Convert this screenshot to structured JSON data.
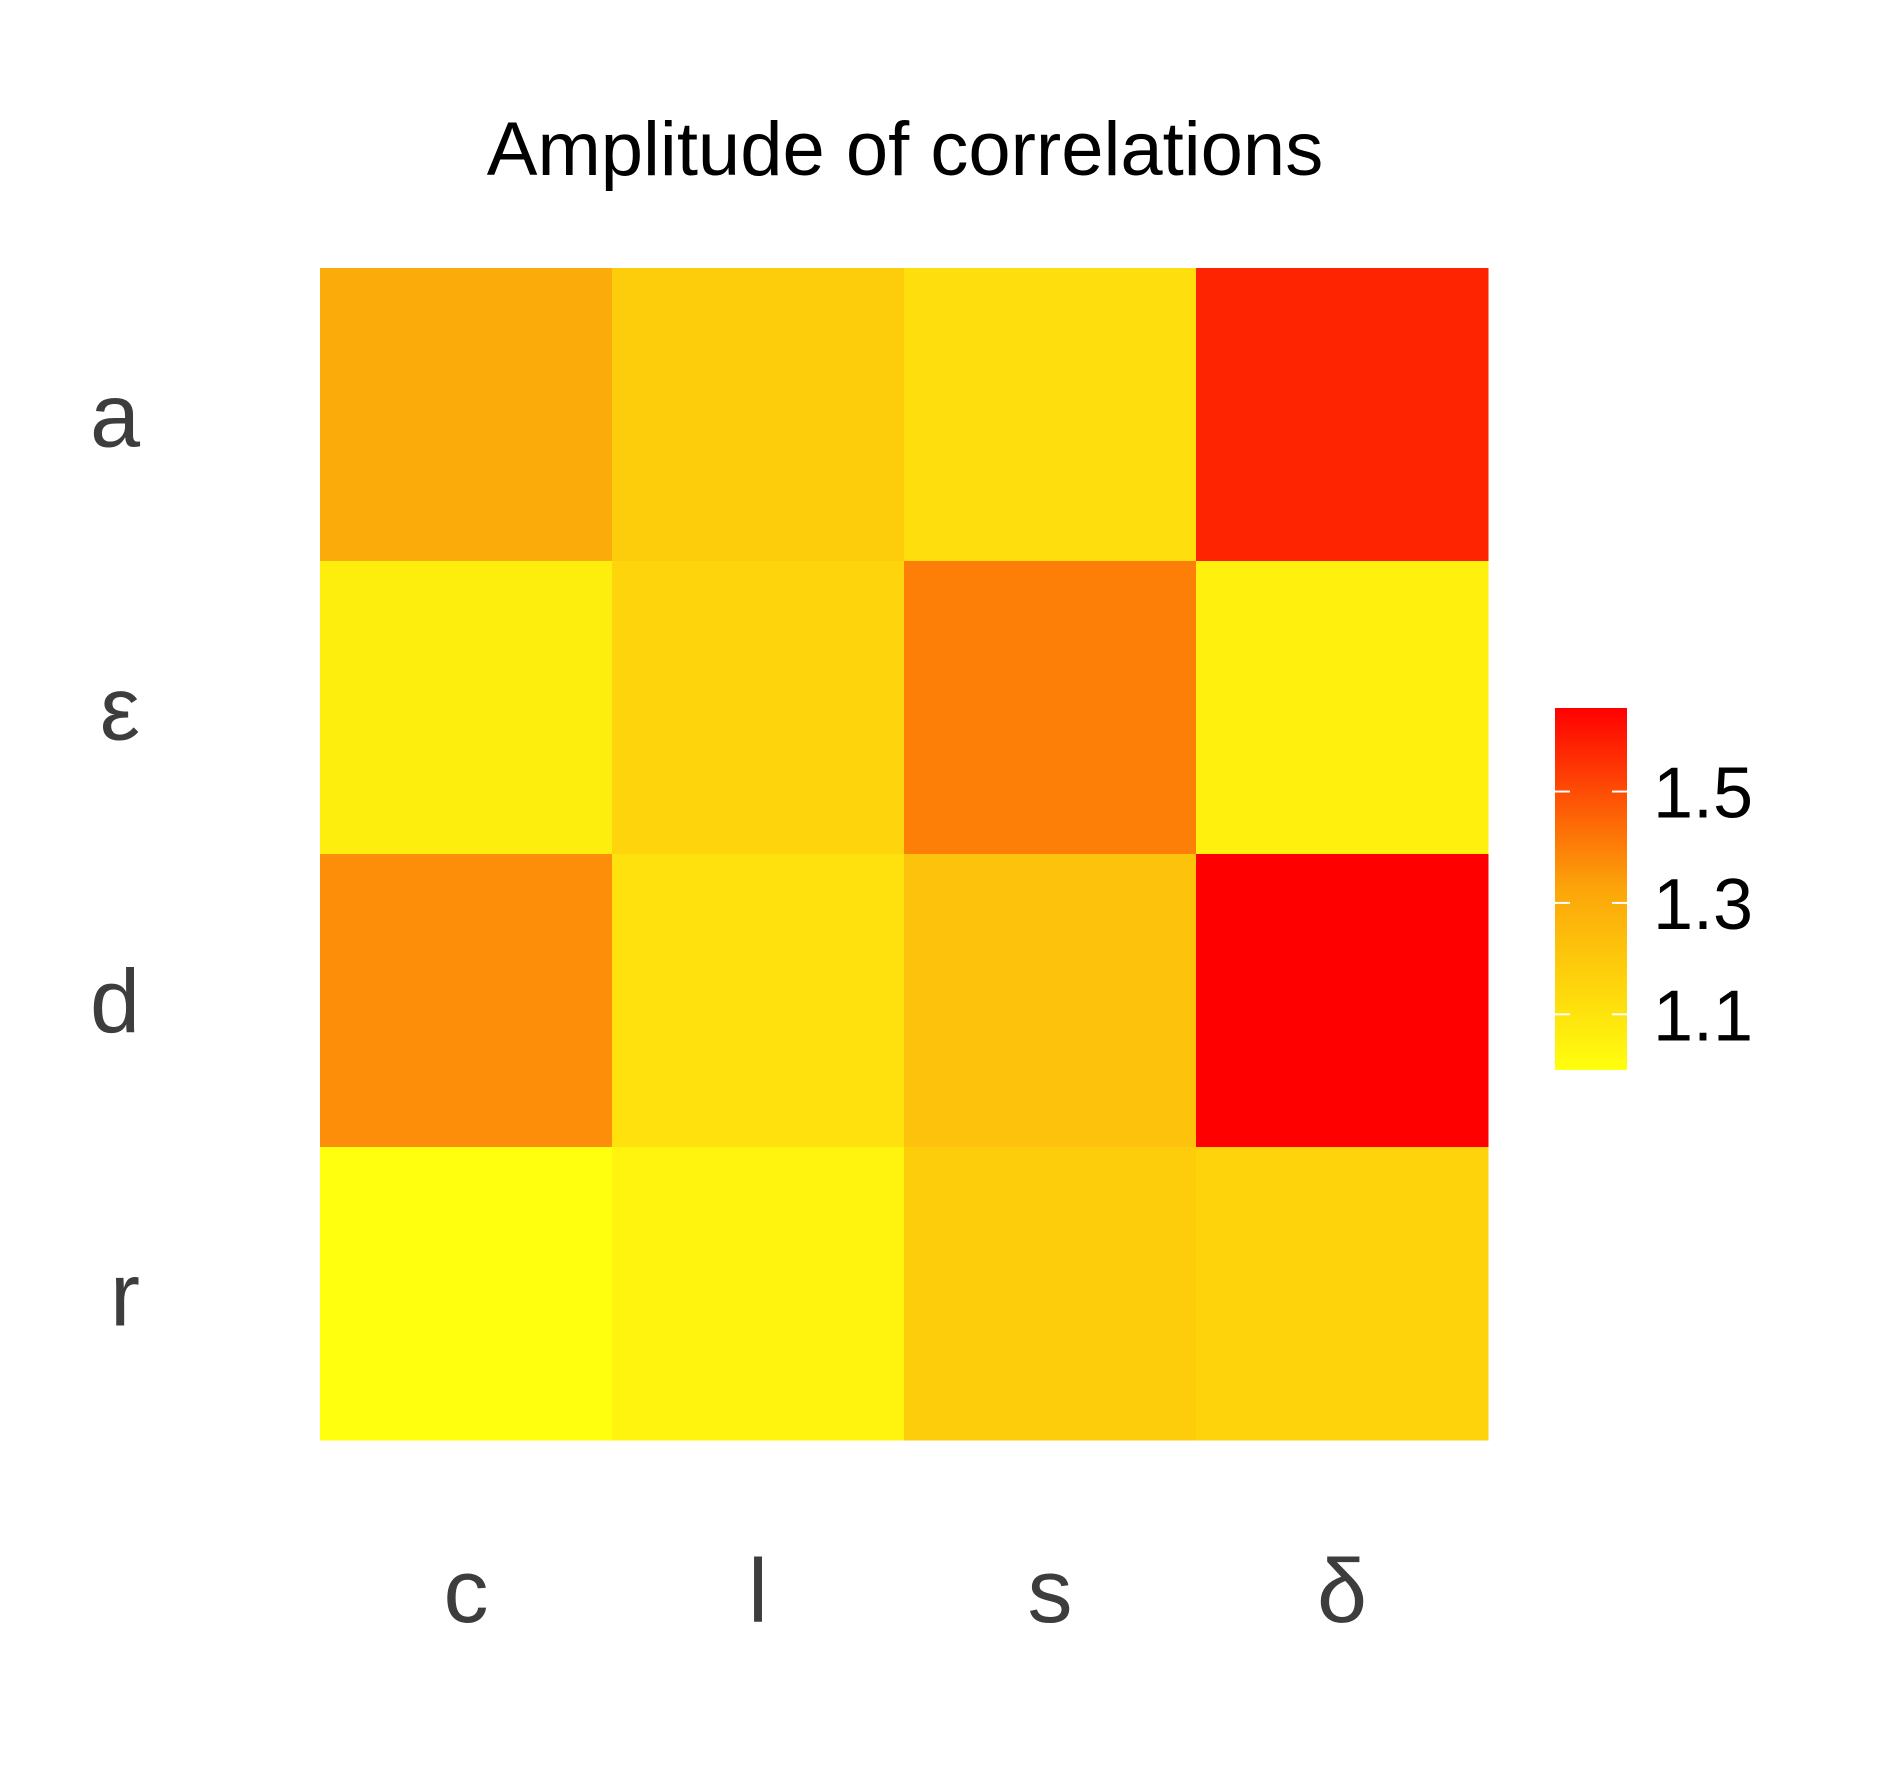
{
  "chart_data": {
    "type": "heatmap",
    "title": "Amplitude of correlations",
    "xlabel": "",
    "ylabel": "",
    "x_categories": [
      "c",
      "l",
      "s",
      "δ"
    ],
    "y_categories": [
      "a",
      "ε",
      "d",
      "r"
    ],
    "values": [
      [
        1.3,
        1.18,
        1.12,
        1.58
      ],
      [
        1.06,
        1.15,
        1.4,
        1.05
      ],
      [
        1.37,
        1.11,
        1.22,
        1.65
      ],
      [
        1.0,
        1.04,
        1.18,
        1.16
      ]
    ],
    "color_scale": {
      "min": 1.0,
      "max": 1.65,
      "low_color": "#ffff0e",
      "mid_color": "#fca50a",
      "high_color": "#ff0000"
    },
    "legend": {
      "position": "right",
      "ticks": [
        1.1,
        1.3,
        1.5
      ],
      "tick_labels": [
        "1.1",
        "1.3",
        "1.5"
      ]
    },
    "grid": false
  }
}
